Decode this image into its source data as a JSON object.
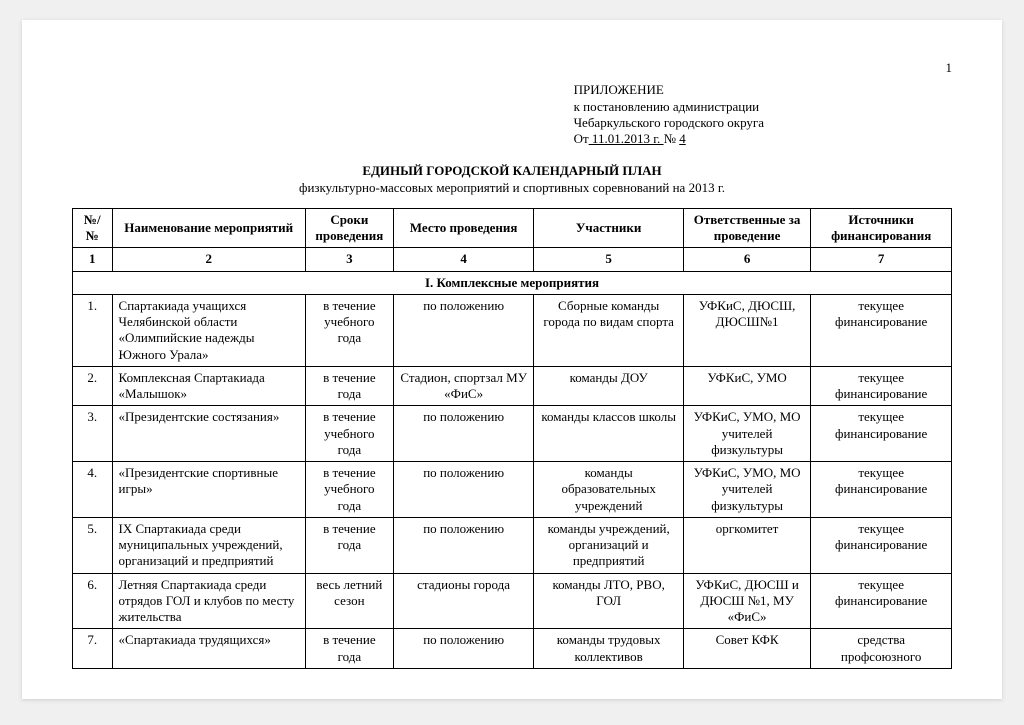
{
  "page_number": "1",
  "annex": {
    "line1": "ПРИЛОЖЕНИЕ",
    "line2": "к постановлению администрации",
    "line3": "Чебаркульского городского округа",
    "line4_prefix": "От",
    "date": " 11.01.2013 г. ",
    "no_label": " № ",
    "no_value": " 4 "
  },
  "title": {
    "main": "ЕДИНЫЙ ГОРОДСКОЙ КАЛЕНДАРНЫЙ ПЛАН",
    "sub": "физкультурно-массовых мероприятий и спортивных соревнований на 2013 г."
  },
  "columns": [
    "№/№",
    "Наименование мероприятий",
    "Сроки проведения",
    "Место проведения",
    "Участники",
    "Ответственные за проведение",
    "Источники финансирования"
  ],
  "col_numbers": [
    "1",
    "2",
    "3",
    "4",
    "5",
    "6",
    "7"
  ],
  "section_title": "I. Комплексные мероприятия",
  "rows": [
    {
      "n": "1.",
      "name": "Спартакиада учащихся Челябинской области «Олимпийские надежды Южного Урала»",
      "time": "в течение учебного года",
      "place": "по положению",
      "part": "Сборные команды города по видам спорта",
      "resp": "УФКиС, ДЮСШ, ДЮСШ№1",
      "fund": "текущее финансирование"
    },
    {
      "n": "2.",
      "name": "Комплексная Спартакиада «Малышок»",
      "time": "в течение года",
      "place": "Стадион, спортзал МУ «ФиС»",
      "part": "команды ДОУ",
      "resp": "УФКиС, УМО",
      "fund": "текущее финансирование"
    },
    {
      "n": "3.",
      "name": "«Президентские состязания»",
      "time": "в течение учебного года",
      "place": "по положению",
      "part": "команды классов школы",
      "resp": "УФКиС, УМО, МО учителей физкультуры",
      "fund": "текущее финансирование"
    },
    {
      "n": "4.",
      "name": "«Президентские спортивные игры»",
      "time": "в течение учебного года",
      "place": "по положению",
      "part": "команды образовательных учреждений",
      "resp": "УФКиС, УМО, МО учителей физкультуры",
      "fund": "текущее финансирование"
    },
    {
      "n": "5.",
      "name": "IX Спартакиада среди муниципальных учреждений, организаций и предприятий",
      "time": "в течение года",
      "place": "по положению",
      "part": "команды учреждений, организаций и предприятий",
      "resp": "оргкомитет",
      "fund": "текущее финансирование"
    },
    {
      "n": "6.",
      "name": "Летняя Спартакиада среди отрядов ГОЛ и клубов по месту жительства",
      "time": "весь летний сезон",
      "place": "стадионы города",
      "part": "команды ЛТО, РВО, ГОЛ",
      "resp": "УФКиС, ДЮСШ и ДЮСШ №1, МУ «ФиС»",
      "fund": "текущее финансирование"
    },
    {
      "n": "7.",
      "name": "«Спартакиада трудящихся»",
      "time": "в течение года",
      "place": "по положению",
      "part": "команды трудовых коллективов",
      "resp": "Совет КФК",
      "fund": "средства профсоюзного"
    }
  ]
}
